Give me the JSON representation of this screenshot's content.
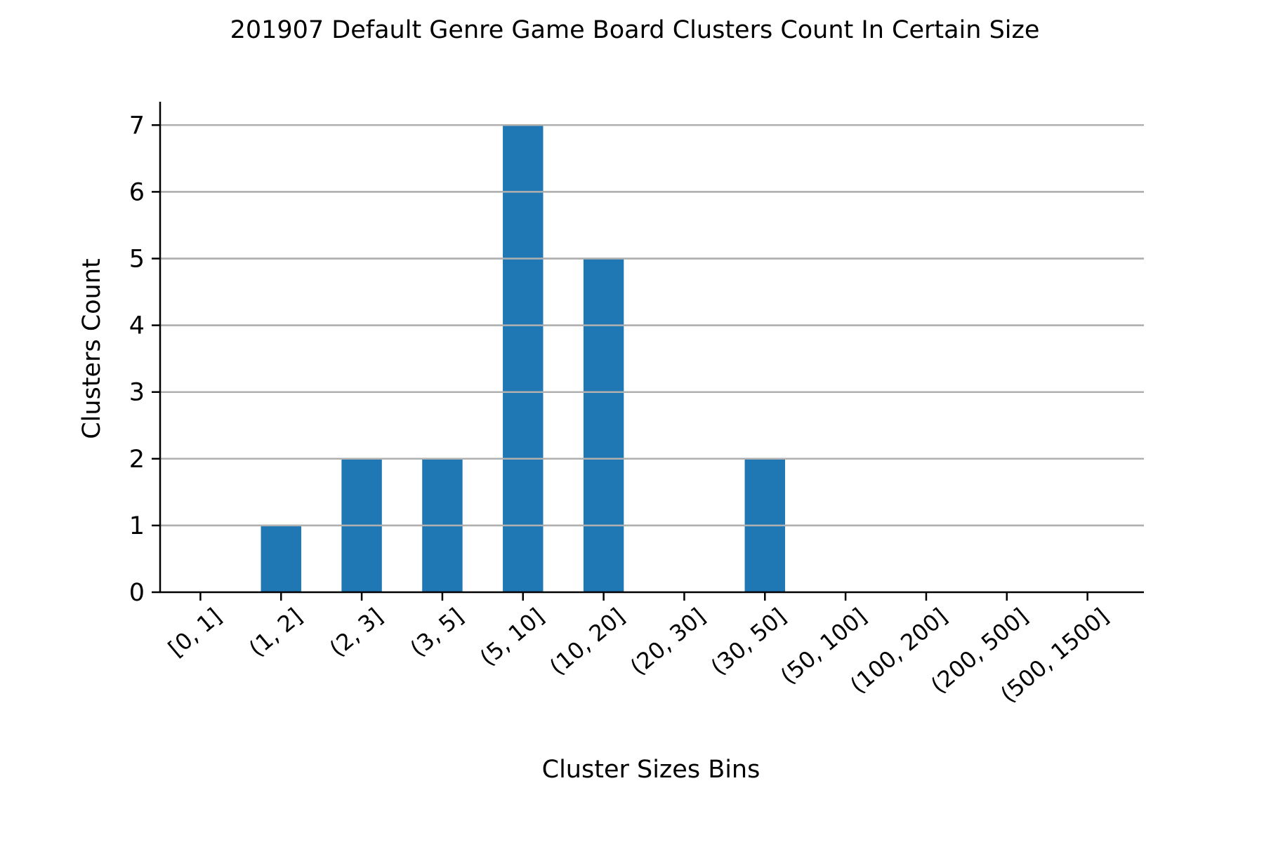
{
  "chart_data": {
    "type": "bar",
    "title": "201907 Default Genre Game Board Clusters Count In Certain Size",
    "xlabel": "Cluster Sizes Bins",
    "ylabel": "Clusters Count",
    "categories": [
      "[0, 1]",
      "(1, 2]",
      "(2, 3]",
      "(3, 5]",
      "(5, 10]",
      "(10, 20]",
      "(20, 30]",
      "(30, 50]",
      "(50, 100]",
      "(100, 200]",
      "(200, 500]",
      "(500, 1500]"
    ],
    "values": [
      0,
      1,
      2,
      2,
      7,
      5,
      0,
      2,
      0,
      0,
      0,
      0
    ],
    "ylim": [
      0,
      7.35
    ],
    "yticks": [
      0,
      1,
      2,
      3,
      4,
      5,
      6,
      7
    ],
    "grid": "horizontal",
    "colors": {
      "bar": "#1f77b4",
      "grid": "#b0b0b0",
      "axis": "#000000"
    }
  }
}
